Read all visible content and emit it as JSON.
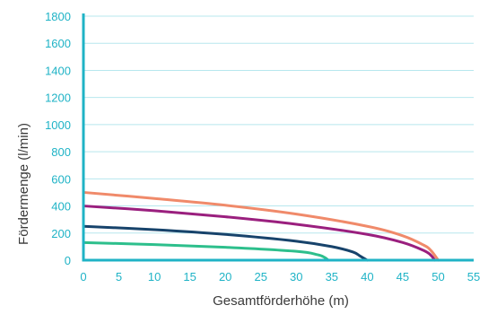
{
  "chart_data": {
    "type": "line",
    "xlabel": "Gesamtförderhöhe (m)",
    "ylabel": "Fördermenge (l/min)",
    "xlim": [
      0,
      55
    ],
    "ylim": [
      0,
      1800
    ],
    "x_ticks": [
      "0",
      "5",
      "10",
      "15",
      "20",
      "25",
      "30",
      "35",
      "40",
      "45",
      "50",
      "55"
    ],
    "y_ticks": [
      "0",
      "200",
      "400",
      "600",
      "800",
      "1000",
      "1200",
      "1400",
      "1600",
      "1800"
    ],
    "grid": "horizontal",
    "axis_color": "#1fb3c6",
    "series": [
      {
        "color": "#f08a6a",
        "x": [
          0,
          10,
          20,
          30,
          40,
          45,
          48,
          49,
          50
        ],
        "y": [
          500,
          455,
          405,
          340,
          250,
          180,
          110,
          70,
          0
        ]
      },
      {
        "color": "#9a1f7e",
        "x": [
          0,
          10,
          20,
          30,
          40,
          45,
          48,
          49,
          49.5
        ],
        "y": [
          400,
          365,
          320,
          265,
          190,
          130,
          70,
          35,
          0
        ]
      },
      {
        "color": "#17436b",
        "x": [
          0,
          10,
          20,
          30,
          35,
          38,
          39,
          40
        ],
        "y": [
          250,
          225,
          190,
          140,
          100,
          60,
          30,
          0
        ]
      },
      {
        "color": "#2dbf8c",
        "x": [
          0,
          10,
          20,
          30,
          33,
          34,
          34.5
        ],
        "y": [
          130,
          115,
          95,
          65,
          40,
          20,
          0
        ]
      }
    ]
  }
}
